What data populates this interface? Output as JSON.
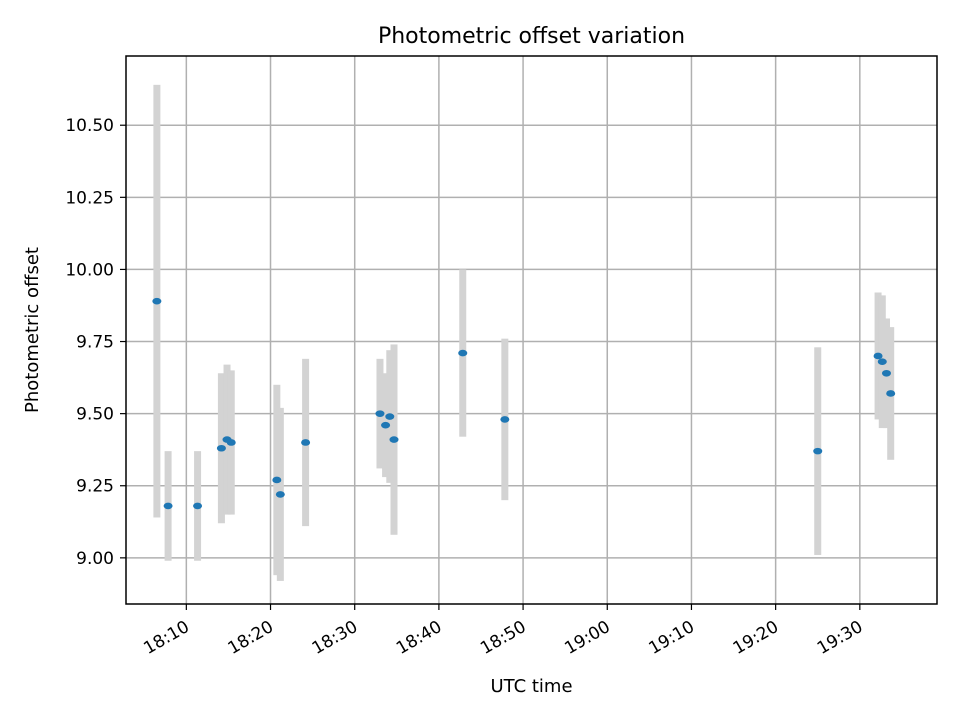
{
  "chart_data": {
    "type": "scatter",
    "title": "Photometric offset variation",
    "xlabel": "UTC time",
    "ylabel": "Photometric offset",
    "x_ticks": [
      "18:10",
      "18:20",
      "18:30",
      "18:40",
      "18:50",
      "19:00",
      "19:10",
      "19:20",
      "19:30"
    ],
    "y_ticks": [
      "9.00",
      "9.25",
      "9.50",
      "9.75",
      "10.00",
      "10.25",
      "10.50"
    ],
    "ylim": [
      8.84,
      10.74
    ],
    "xlim": [
      "18:02:50",
      "19:39:10"
    ],
    "grid": true,
    "x_tick_rotation_deg": 30,
    "colors": {
      "point": "#1f77b4",
      "errorbar": "#d3d3d3"
    },
    "points": [
      {
        "x": "18:06:30",
        "y": 9.89,
        "yerr": 0.75
      },
      {
        "x": "18:07:50",
        "y": 9.18,
        "yerr": 0.19
      },
      {
        "x": "18:11:20",
        "y": 9.18,
        "yerr": 0.19
      },
      {
        "x": "18:14:10",
        "y": 9.38,
        "yerr": 0.26
      },
      {
        "x": "18:14:50",
        "y": 9.41,
        "yerr": 0.26
      },
      {
        "x": "18:15:20",
        "y": 9.4,
        "yerr": 0.25
      },
      {
        "x": "18:20:45",
        "y": 9.27,
        "yerr": 0.33
      },
      {
        "x": "18:21:10",
        "y": 9.22,
        "yerr": 0.3
      },
      {
        "x": "18:24:10",
        "y": 9.4,
        "yerr": 0.29
      },
      {
        "x": "18:33:00",
        "y": 9.5,
        "yerr": 0.19
      },
      {
        "x": "18:33:40",
        "y": 9.46,
        "yerr": 0.18
      },
      {
        "x": "18:34:10",
        "y": 9.49,
        "yerr": 0.23
      },
      {
        "x": "18:34:40",
        "y": 9.41,
        "yerr": 0.33
      },
      {
        "x": "18:42:50",
        "y": 9.71,
        "yerr": 0.29
      },
      {
        "x": "18:47:50",
        "y": 9.48,
        "yerr": 0.28
      },
      {
        "x": "19:25:00",
        "y": 9.37,
        "yerr": 0.36
      },
      {
        "x": "19:32:10",
        "y": 9.7,
        "yerr": 0.22
      },
      {
        "x": "19:32:40",
        "y": 9.68,
        "yerr": 0.23
      },
      {
        "x": "19:33:10",
        "y": 9.64,
        "yerr": 0.19
      },
      {
        "x": "19:33:40",
        "y": 9.57,
        "yerr": 0.23
      }
    ]
  }
}
